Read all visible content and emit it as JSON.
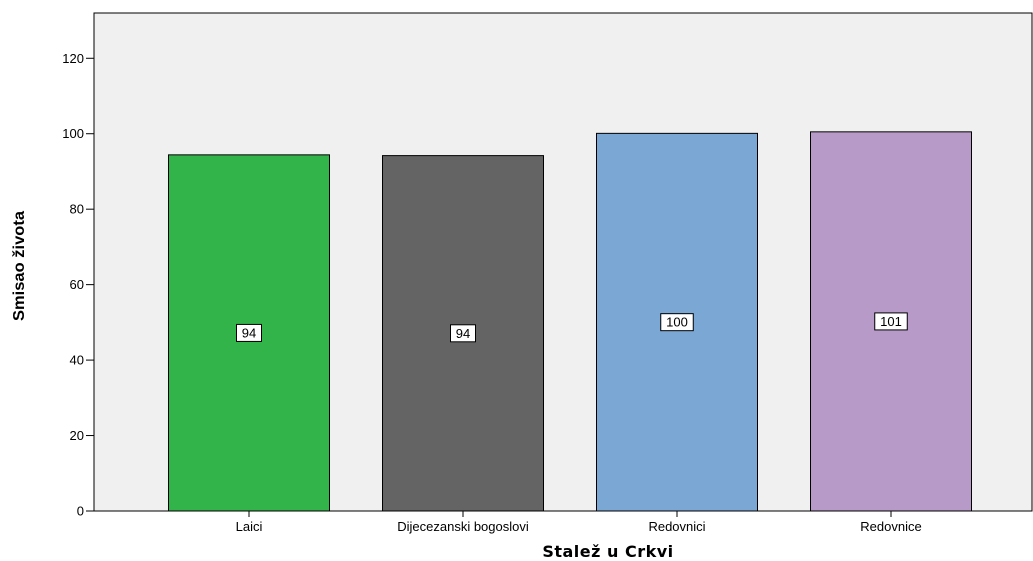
{
  "chart_data": {
    "type": "bar",
    "categories": [
      "Laici",
      "Dijecezanski bogoslovi",
      "Redovnici",
      "Redovnice"
    ],
    "values": [
      94.4,
      94.2,
      100.1,
      100.5
    ],
    "data_labels": [
      "94",
      "94",
      "100",
      "101"
    ],
    "colors": [
      "#32b44a",
      "#646464",
      "#7ba7d4",
      "#b89ac8"
    ],
    "title": "",
    "xlabel": "Stalež u Crkvi",
    "ylabel": "Smisao života",
    "ylim": [
      0,
      132
    ],
    "yticks": [
      0,
      20,
      40,
      60,
      80,
      100,
      120
    ],
    "grid": false,
    "legend": "none"
  }
}
